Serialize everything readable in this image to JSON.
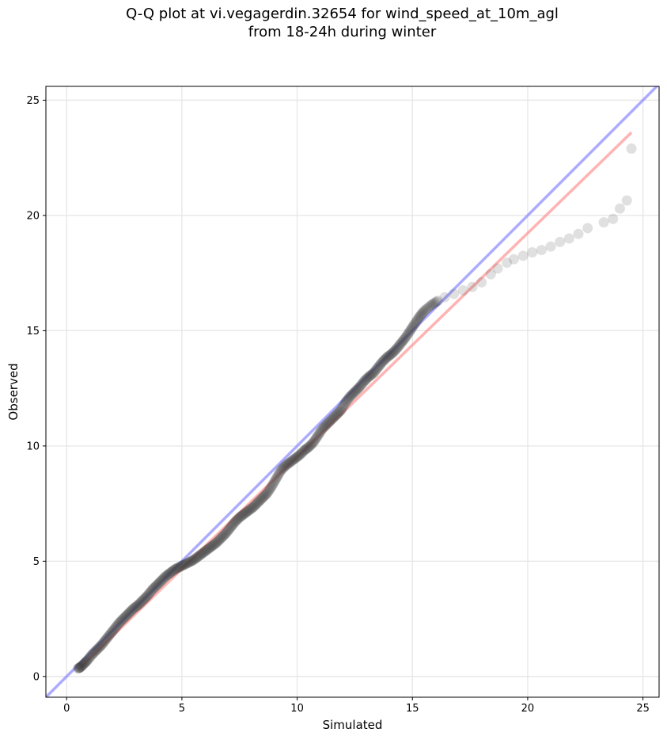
{
  "chart_data": {
    "type": "scatter",
    "title_lines": [
      "Q-Q plot at vi.vegagerdin.32654 for wind_speed_at_10m_agl",
      "from 18-24h during winter"
    ],
    "xlabel": "Simulated",
    "ylabel": "Observed",
    "xlim": [
      -0.9,
      25.7
    ],
    "ylim": [
      -0.9,
      25.6
    ],
    "x_ticks": [
      0,
      5,
      10,
      15,
      20,
      25
    ],
    "y_ticks": [
      0,
      5,
      10,
      15,
      20,
      25
    ],
    "x_tick_labels": [
      "0",
      "5",
      "10",
      "15",
      "20",
      "25"
    ],
    "y_tick_labels": [
      "0",
      "5",
      "10",
      "15",
      "20",
      "25"
    ],
    "grid": true,
    "series": [
      {
        "values_xy": [
          [
            0.5,
            0.35
          ],
          [
            0.6,
            0.4
          ],
          [
            0.75,
            0.55
          ],
          [
            0.9,
            0.7
          ],
          [
            1.1,
            0.95
          ],
          [
            1.3,
            1.15
          ],
          [
            1.5,
            1.35
          ],
          [
            1.7,
            1.6
          ],
          [
            1.9,
            1.85
          ],
          [
            2.1,
            2.1
          ],
          [
            2.3,
            2.35
          ],
          [
            2.5,
            2.55
          ],
          [
            2.7,
            2.75
          ],
          [
            2.9,
            2.95
          ],
          [
            3.1,
            3.1
          ],
          [
            3.3,
            3.3
          ],
          [
            3.5,
            3.5
          ],
          [
            3.7,
            3.75
          ],
          [
            3.9,
            3.95
          ],
          [
            4.1,
            4.15
          ],
          [
            4.3,
            4.35
          ],
          [
            4.5,
            4.5
          ],
          [
            4.7,
            4.65
          ],
          [
            4.9,
            4.75
          ],
          [
            5.1,
            4.85
          ],
          [
            5.3,
            4.95
          ],
          [
            5.5,
            5.05
          ],
          [
            5.7,
            5.2
          ],
          [
            5.9,
            5.35
          ],
          [
            6.1,
            5.5
          ],
          [
            6.3,
            5.65
          ],
          [
            6.5,
            5.8
          ],
          [
            6.7,
            6.0
          ],
          [
            6.9,
            6.2
          ],
          [
            7.1,
            6.45
          ],
          [
            7.3,
            6.7
          ],
          [
            7.5,
            6.9
          ],
          [
            7.7,
            7.05
          ],
          [
            7.9,
            7.2
          ],
          [
            8.1,
            7.35
          ],
          [
            8.3,
            7.55
          ],
          [
            8.5,
            7.75
          ],
          [
            8.7,
            7.95
          ],
          [
            8.9,
            8.25
          ],
          [
            9.1,
            8.6
          ],
          [
            9.3,
            8.95
          ],
          [
            9.5,
            9.15
          ],
          [
            9.7,
            9.3
          ],
          [
            9.9,
            9.45
          ],
          [
            10.1,
            9.6
          ],
          [
            10.3,
            9.8
          ],
          [
            10.5,
            9.95
          ],
          [
            10.7,
            10.15
          ],
          [
            10.9,
            10.45
          ],
          [
            11.1,
            10.75
          ],
          [
            11.3,
            10.95
          ],
          [
            11.5,
            11.15
          ],
          [
            11.7,
            11.35
          ],
          [
            11.9,
            11.55
          ],
          [
            12.1,
            11.9
          ],
          [
            12.3,
            12.15
          ],
          [
            12.5,
            12.35
          ],
          [
            12.7,
            12.55
          ],
          [
            12.9,
            12.8
          ],
          [
            13.1,
            13.0
          ],
          [
            13.3,
            13.15
          ],
          [
            13.5,
            13.4
          ],
          [
            13.7,
            13.65
          ],
          [
            13.9,
            13.85
          ],
          [
            14.1,
            14.0
          ],
          [
            14.3,
            14.2
          ],
          [
            14.5,
            14.45
          ],
          [
            14.7,
            14.7
          ],
          [
            14.9,
            15.0
          ],
          [
            15.1,
            15.3
          ],
          [
            15.3,
            15.6
          ],
          [
            15.5,
            15.85
          ],
          [
            15.8,
            16.1
          ],
          [
            16.1,
            16.3
          ],
          [
            16.4,
            16.45
          ],
          [
            16.8,
            16.6
          ],
          [
            17.2,
            16.75
          ],
          [
            17.6,
            16.9
          ],
          [
            18.0,
            17.1
          ],
          [
            18.4,
            17.45
          ],
          [
            18.7,
            17.7
          ],
          [
            19.1,
            17.95
          ],
          [
            19.4,
            18.1
          ],
          [
            19.8,
            18.25
          ],
          [
            20.2,
            18.4
          ],
          [
            20.6,
            18.5
          ],
          [
            21.0,
            18.65
          ],
          [
            21.4,
            18.85
          ],
          [
            21.8,
            19.0
          ],
          [
            22.2,
            19.2
          ],
          [
            22.6,
            19.45
          ],
          [
            23.3,
            19.7
          ],
          [
            23.7,
            19.85
          ],
          [
            24.0,
            20.3
          ],
          [
            24.3,
            20.65
          ],
          [
            24.5,
            22.9
          ]
        ]
      }
    ],
    "reference_lines": [
      {
        "color": "#8080ff",
        "from": [
          -0.9,
          -0.9
        ],
        "to": [
          25.7,
          25.7
        ]
      },
      {
        "color": "#ff8080",
        "from": [
          0.5,
          0.3
        ],
        "to": [
          24.5,
          23.6
        ]
      }
    ],
    "marker_color": "#404040"
  }
}
